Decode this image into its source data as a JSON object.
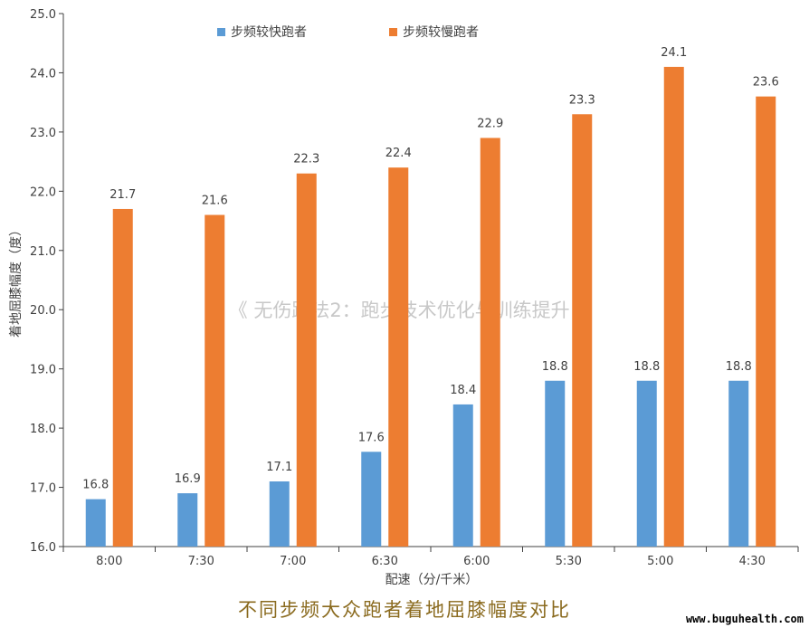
{
  "chart_data": {
    "type": "bar",
    "categories": [
      "8:00",
      "7:30",
      "7:00",
      "6:30",
      "6:00",
      "5:30",
      "5:00",
      "4:30"
    ],
    "series": [
      {
        "name": "步频较快跑者",
        "values": [
          16.8,
          16.9,
          17.1,
          17.6,
          18.4,
          18.8,
          18.8,
          18.8
        ],
        "color": "#5b9bd5"
      },
      {
        "name": "步频较慢跑者",
        "values": [
          21.7,
          21.6,
          22.3,
          22.4,
          22.9,
          23.3,
          24.1,
          23.6
        ],
        "color": "#ed7d31"
      }
    ],
    "title": "",
    "xlabel": "配速（分/千米）",
    "ylabel": "着地屈膝幅度（度）",
    "ylim": [
      16.0,
      25.0
    ],
    "yticks": [
      "16.0",
      "17.0",
      "18.0",
      "19.0",
      "20.0",
      "21.0",
      "22.0",
      "23.0",
      "24.0",
      "25.0"
    ],
    "grid": false,
    "legend_position": "top"
  },
  "watermark": "《 无伤跑法2：跑步技术优化与训练提升 》",
  "caption": "不同步频大众跑者着地屈膝幅度对比",
  "site": "www.buguhealth.com"
}
